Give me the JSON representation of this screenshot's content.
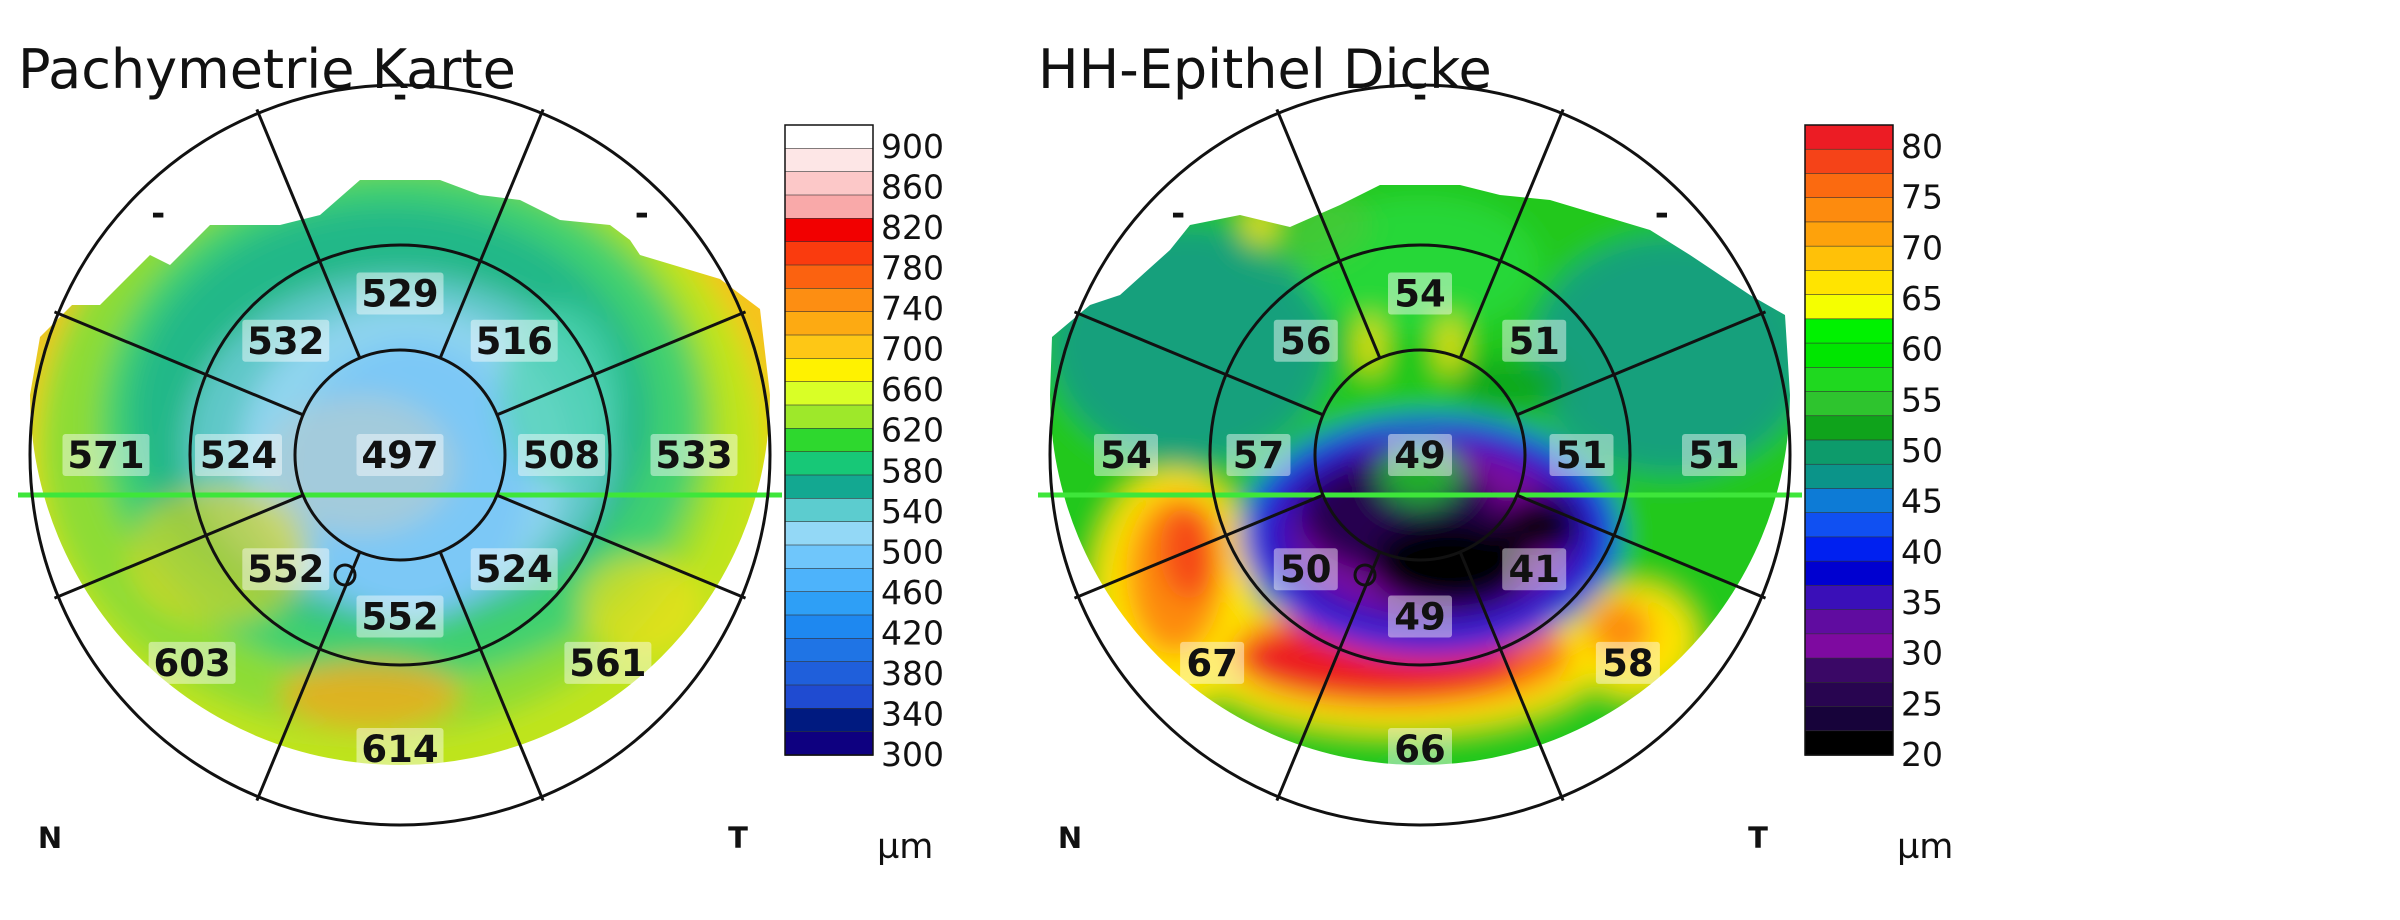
{
  "chart_data": [
    {
      "type": "heatmap",
      "title": "Pachymetrie Karte",
      "unit": "µm",
      "orientation": {
        "left": "N",
        "right": "T"
      },
      "center": {
        "value": "497"
      },
      "inner_ring": {
        "values": [
          "529",
          "516",
          "508",
          "524",
          "552",
          "552",
          "524",
          "532"
        ]
      },
      "outer_ring": {
        "values": [
          "-",
          "-",
          "533",
          "561",
          "614",
          "603",
          "571",
          "-"
        ]
      },
      "scale": {
        "ticks": [
          "900",
          "860",
          "820",
          "780",
          "740",
          "700",
          "660",
          "620",
          "580",
          "540",
          "500",
          "460",
          "420",
          "380",
          "340",
          "300"
        ],
        "colors": [
          "#ffffff",
          "#fde6e6",
          "#fcc8c8",
          "#f9a9a9",
          "#f20000",
          "#fa3b0e",
          "#fb6210",
          "#fd8e12",
          "#fdaa12",
          "#fec715",
          "#fff200",
          "#d9ff26",
          "#9ee82a",
          "#2ed82e",
          "#17c877",
          "#13a891",
          "#5ccccf",
          "#93d8f6",
          "#6fc6fb",
          "#4db3fb",
          "#2e9ff6",
          "#1e88f0",
          "#1f74e5",
          "#1f5fdb",
          "#1f4bd1",
          "#001a80",
          "#0e0080"
        ]
      }
    },
    {
      "type": "heatmap",
      "title": "HH-Epithel Dicke",
      "unit": "µm",
      "orientation": {
        "left": "N",
        "right": "T"
      },
      "center": {
        "value": "49"
      },
      "inner_ring": {
        "values": [
          "54",
          "51",
          "51",
          "41",
          "49",
          "50",
          "57",
          "56"
        ]
      },
      "outer_ring": {
        "values": [
          "-",
          "-",
          "51",
          "58",
          "66",
          "67",
          "54",
          "-"
        ]
      },
      "scale": {
        "ticks": [
          "80",
          "75",
          "70",
          "65",
          "60",
          "55",
          "50",
          "45",
          "40",
          "35",
          "30",
          "25",
          "20"
        ],
        "colors": [
          "#ec1c24",
          "#f54318",
          "#fb6a10",
          "#fd8b0e",
          "#fea20b",
          "#ffc108",
          "#ffe400",
          "#f5ff00",
          "#00f200",
          "#00e600",
          "#1fd81f",
          "#2ec42e",
          "#0fa31b",
          "#0d9b6b",
          "#0b9489",
          "#0d7bd6",
          "#1050f2",
          "#0020f0",
          "#0000d0",
          "#3a0fb8",
          "#600ca0",
          "#7e0aa0",
          "#3a0866",
          "#280550",
          "#17033a",
          "#000000"
        ]
      }
    }
  ]
}
